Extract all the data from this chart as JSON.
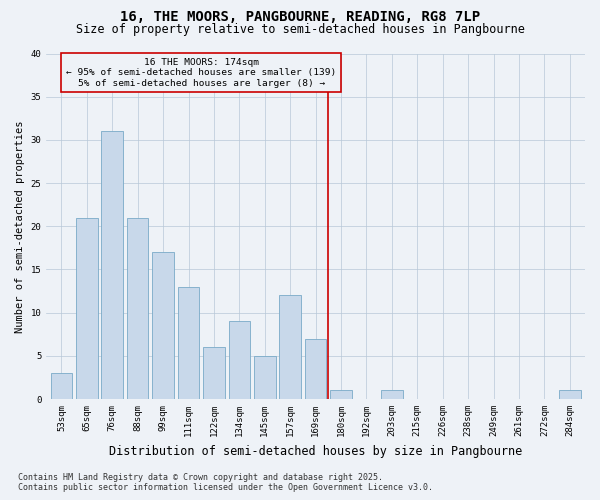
{
  "title_line1": "16, THE MOORS, PANGBOURNE, READING, RG8 7LP",
  "title_line2": "Size of property relative to semi-detached houses in Pangbourne",
  "xlabel": "Distribution of semi-detached houses by size in Pangbourne",
  "ylabel": "Number of semi-detached properties",
  "categories": [
    "53sqm",
    "65sqm",
    "76sqm",
    "88sqm",
    "99sqm",
    "111sqm",
    "122sqm",
    "134sqm",
    "145sqm",
    "157sqm",
    "169sqm",
    "180sqm",
    "192sqm",
    "203sqm",
    "215sqm",
    "226sqm",
    "238sqm",
    "249sqm",
    "261sqm",
    "272sqm",
    "284sqm"
  ],
  "values": [
    3,
    21,
    31,
    21,
    17,
    13,
    6,
    9,
    5,
    12,
    7,
    1,
    0,
    1,
    0,
    0,
    0,
    0,
    0,
    0,
    1
  ],
  "bar_color": "#c8d8ea",
  "bar_edge_color": "#7aaac8",
  "vline_x": 10.5,
  "vline_color": "#cc0000",
  "annotation_text": "16 THE MOORS: 174sqm\n← 95% of semi-detached houses are smaller (139)\n5% of semi-detached houses are larger (8) →",
  "annotation_box_color": "#cc0000",
  "background_color": "#eef2f7",
  "ylim": [
    0,
    40
  ],
  "yticks": [
    0,
    5,
    10,
    15,
    20,
    25,
    30,
    35,
    40
  ],
  "footer_line1": "Contains HM Land Registry data © Crown copyright and database right 2025.",
  "footer_line2": "Contains public sector information licensed under the Open Government Licence v3.0.",
  "title_fontsize": 10,
  "subtitle_fontsize": 8.5,
  "ylabel_fontsize": 7.5,
  "xlabel_fontsize": 8.5,
  "tick_fontsize": 6.5,
  "annotation_fontsize": 6.8,
  "footer_fontsize": 6
}
